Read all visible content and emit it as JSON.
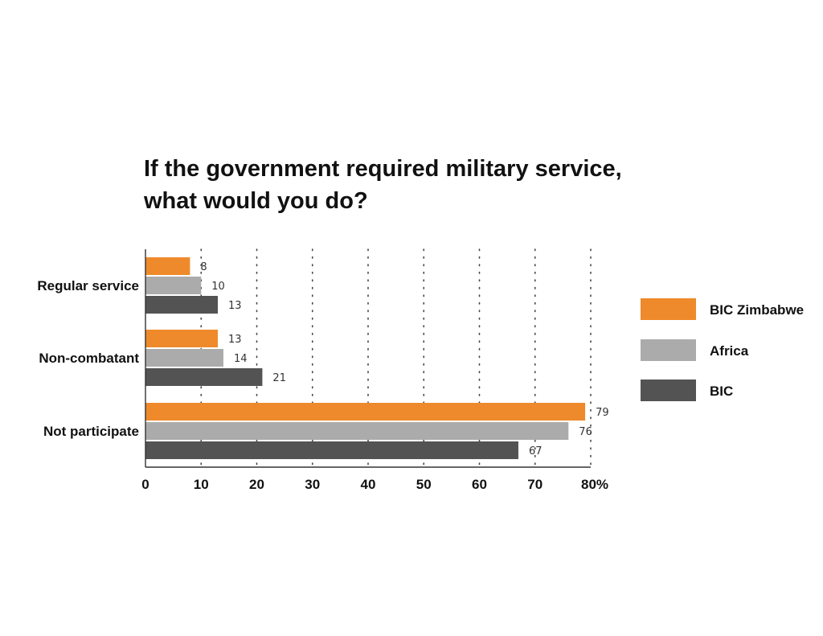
{
  "chart_data": {
    "type": "bar",
    "orientation": "horizontal",
    "title_lines": [
      "If the government required military service,",
      "what would you do?"
    ],
    "categories": [
      "Regular service",
      "Non-combatant",
      "Not participate"
    ],
    "series": [
      {
        "name": "BIC Zimbabwe",
        "color": "#EE8A2B",
        "values": [
          8,
          13,
          79
        ]
      },
      {
        "name": "Africa",
        "color": "#ABABAB",
        "values": [
          10,
          14,
          76
        ]
      },
      {
        "name": "BIC",
        "color": "#535353",
        "values": [
          13,
          21,
          67
        ]
      }
    ],
    "x_ticks": [
      "0",
      "10",
      "20",
      "30",
      "40",
      "50",
      "60",
      "70",
      "80%"
    ],
    "xlim": [
      0,
      80
    ],
    "grid": "vertical dotted",
    "legend_position": "right"
  }
}
